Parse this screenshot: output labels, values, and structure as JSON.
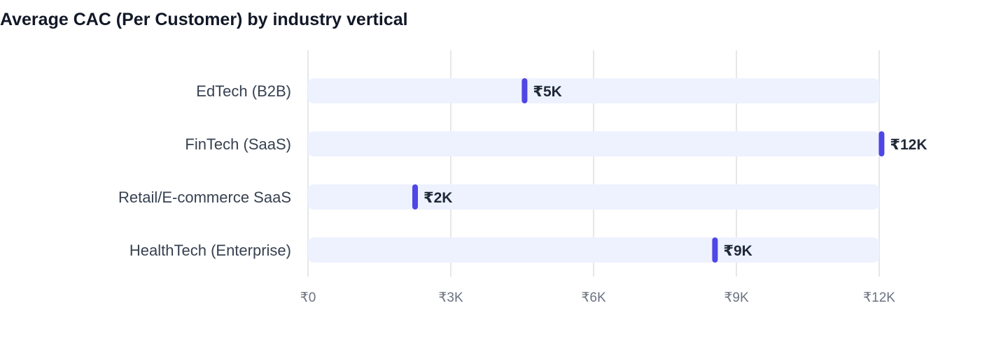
{
  "title": "Average CAC (Per Customer) by industry vertical",
  "colors": {
    "marker": "#4f46e5",
    "track": "#eef2ff",
    "grid": "#e5e7eb"
  },
  "chart_data": {
    "type": "bar",
    "title": "Average CAC (Per Customer) by industry vertical",
    "orientation": "horizontal",
    "categories": [
      "EdTech (B2B)",
      "FinTech (SaaS)",
      "Retail/E-commerce SaaS",
      "HealthTech (Enterprise)"
    ],
    "values": [
      4550,
      12050,
      2250,
      8550
    ],
    "value_labels": [
      "₹5K",
      "₹12K",
      "₹2K",
      "₹9K"
    ],
    "x_ticks": [
      0,
      3000,
      6000,
      9000,
      12000
    ],
    "x_tick_labels": [
      "₹0",
      "₹3K",
      "₹6K",
      "₹9K",
      "₹12K"
    ],
    "xlim": [
      0,
      12000
    ],
    "grid": true,
    "legend": "none"
  }
}
